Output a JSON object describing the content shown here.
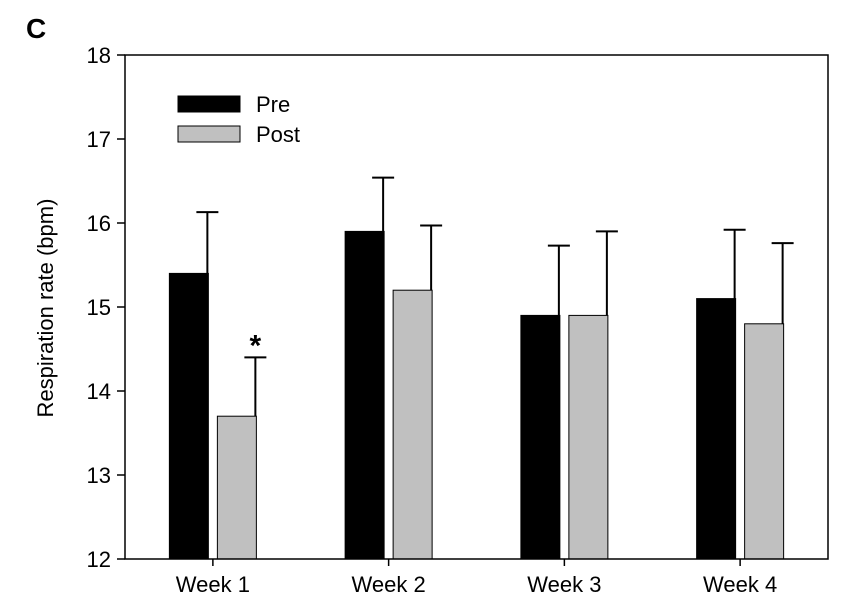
{
  "panel_label": "C",
  "colors": {
    "pre": "#000000",
    "post": "#c0c0c0",
    "axis": "#000000"
  },
  "chart_data": {
    "type": "bar",
    "title": "",
    "xlabel": "",
    "ylabel": "Respiration rate (bpm)",
    "ylim": [
      12,
      18
    ],
    "yticks": [
      12,
      13,
      14,
      15,
      16,
      17,
      18
    ],
    "categories": [
      "Week 1",
      "Week 2",
      "Week 3",
      "Week 4"
    ],
    "legend_position": "top-left",
    "grid": false,
    "series": [
      {
        "name": "Pre",
        "color": "#000000",
        "values": [
          15.4,
          15.9,
          14.9,
          15.1
        ],
        "errors": [
          0.73,
          0.64,
          0.83,
          0.82
        ]
      },
      {
        "name": "Post",
        "color": "#c0c0c0",
        "values": [
          13.7,
          15.2,
          14.9,
          14.8
        ],
        "errors": [
          0.7,
          0.77,
          1.0,
          0.96
        ]
      }
    ],
    "annotations": [
      {
        "text": "*",
        "category": "Week 1",
        "series": "Post"
      }
    ]
  }
}
